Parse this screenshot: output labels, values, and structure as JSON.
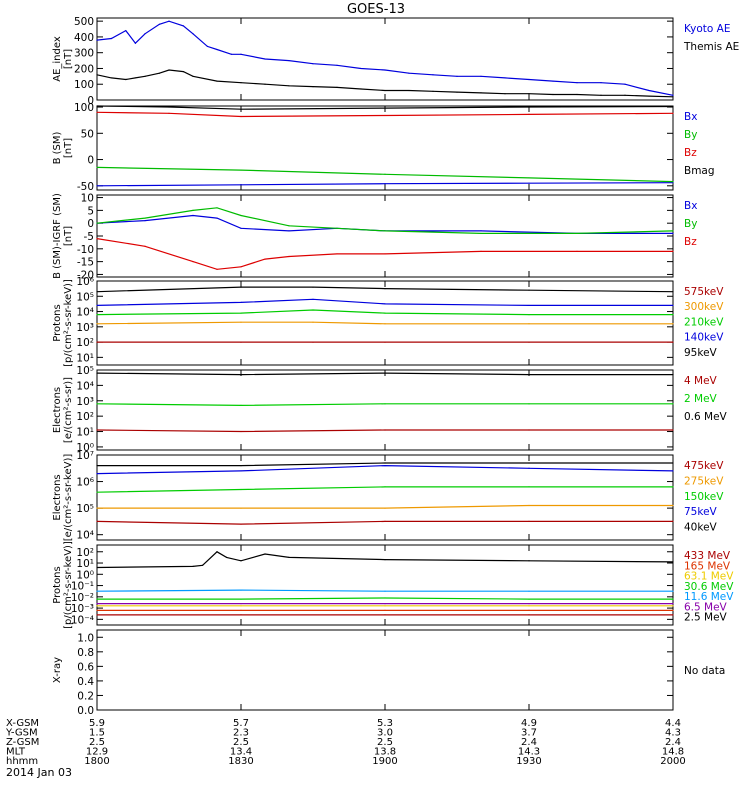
{
  "title": "GOES-13",
  "date_label": "2014 Jan 03",
  "chart_data": [
    {
      "type": "line",
      "ylabel": [
        "AE_index",
        "[nT]"
      ],
      "yticks": [
        "0",
        "100",
        "200",
        "300",
        "400",
        "500"
      ],
      "ylim": [
        0,
        520
      ],
      "log": false,
      "series": [
        {
          "name": "Kyoto AE",
          "color": "#0000dd",
          "x": [
            0,
            3,
            6,
            8,
            10,
            13,
            15,
            18,
            20,
            23,
            25,
            28,
            30,
            35,
            40,
            45,
            50,
            55,
            60,
            65,
            70,
            75,
            80,
            85,
            90,
            95,
            100,
            105,
            110,
            115,
            120
          ],
          "values": [
            380,
            390,
            440,
            360,
            420,
            480,
            500,
            470,
            420,
            340,
            320,
            290,
            290,
            260,
            250,
            230,
            220,
            200,
            190,
            170,
            160,
            150,
            150,
            140,
            130,
            120,
            110,
            110,
            100,
            60,
            30
          ]
        },
        {
          "name": "Themis AE",
          "color": "#000000",
          "x": [
            0,
            3,
            6,
            8,
            10,
            13,
            15,
            18,
            20,
            25,
            30,
            35,
            40,
            45,
            50,
            55,
            60,
            65,
            70,
            75,
            80,
            85,
            90,
            95,
            100,
            105,
            110,
            115,
            120
          ],
          "values": [
            160,
            140,
            130,
            140,
            150,
            170,
            190,
            180,
            150,
            120,
            110,
            100,
            90,
            85,
            80,
            70,
            60,
            60,
            55,
            50,
            45,
            40,
            40,
            35,
            35,
            30,
            30,
            25,
            20
          ]
        }
      ]
    },
    {
      "type": "line",
      "ylabel": [
        "B (SM)",
        "[nT]"
      ],
      "yticks": [
        "-50",
        "0",
        "50",
        "100"
      ],
      "ylim": [
        -58,
        102
      ],
      "log": false,
      "series": [
        {
          "name": "Bx",
          "color": "#0000dd",
          "x": [
            0,
            30,
            60,
            90,
            120
          ],
          "values": [
            -50,
            -48,
            -46,
            -45,
            -44
          ]
        },
        {
          "name": "By",
          "color": "#00bb00",
          "x": [
            0,
            30,
            60,
            90,
            120
          ],
          "values": [
            -15,
            -20,
            -28,
            -35,
            -42
          ]
        },
        {
          "name": "Bz",
          "color": "#dd0000",
          "x": [
            0,
            15,
            30,
            60,
            90,
            120
          ],
          "values": [
            90,
            88,
            82,
            84,
            86,
            88
          ]
        },
        {
          "name": "Bmag",
          "color": "#000000",
          "x": [
            0,
            15,
            30,
            60,
            90,
            120
          ],
          "values": [
            102,
            100,
            96,
            98,
            100,
            101
          ]
        }
      ]
    },
    {
      "type": "line",
      "ylabel": [
        "B (SM)-IGRF (SM)",
        "[nT]"
      ],
      "yticks": [
        "-20",
        "-15",
        "-10",
        "-5",
        "0",
        "5",
        "10"
      ],
      "ylim": [
        -21,
        11
      ],
      "log": false,
      "series": [
        {
          "name": "Bx",
          "color": "#0000dd",
          "x": [
            0,
            10,
            20,
            25,
            30,
            40,
            50,
            60,
            80,
            100,
            120
          ],
          "values": [
            0,
            1,
            3,
            2,
            -2,
            -3,
            -2,
            -3,
            -3,
            -4,
            -4
          ]
        },
        {
          "name": "By",
          "color": "#00bb00",
          "x": [
            0,
            10,
            20,
            25,
            30,
            40,
            50,
            60,
            80,
            100,
            120
          ],
          "values": [
            0,
            2,
            5,
            6,
            3,
            -1,
            -2,
            -3,
            -4,
            -4,
            -3
          ]
        },
        {
          "name": "Bz",
          "color": "#dd0000",
          "x": [
            0,
            10,
            20,
            25,
            30,
            35,
            40,
            50,
            60,
            80,
            100,
            120
          ],
          "values": [
            -6,
            -9,
            -15,
            -18,
            -17,
            -14,
            -13,
            -12,
            -12,
            -11,
            -11,
            -11
          ]
        }
      ]
    },
    {
      "type": "line",
      "ylabel": [
        "Protons",
        "[p/(cm²-s-sr-keV)]"
      ],
      "yticks": [
        "10¹",
        "10²",
        "10³",
        "10⁴",
        "10⁵",
        "10⁶"
      ],
      "ylim": [
        0.5,
        6
      ],
      "log": true,
      "series": [
        {
          "name": "575keV",
          "color": "#aa0000",
          "x": [
            0,
            30,
            45,
            60,
            90,
            120
          ],
          "values": [
            2.0,
            2.0,
            2.0,
            2.0,
            2.0,
            2.0
          ]
        },
        {
          "name": "300keV",
          "color": "#ee9900",
          "x": [
            0,
            30,
            45,
            60,
            90,
            120
          ],
          "values": [
            3.2,
            3.3,
            3.3,
            3.2,
            3.2,
            3.2
          ]
        },
        {
          "name": "210keV",
          "color": "#00cc00",
          "x": [
            0,
            30,
            45,
            60,
            90,
            120
          ],
          "values": [
            3.8,
            3.9,
            4.1,
            3.9,
            3.8,
            3.8
          ]
        },
        {
          "name": "140keV",
          "color": "#0000dd",
          "x": [
            0,
            30,
            45,
            60,
            90,
            120
          ],
          "values": [
            4.4,
            4.6,
            4.8,
            4.5,
            4.4,
            4.4
          ]
        },
        {
          "name": "95keV",
          "color": "#000000",
          "x": [
            0,
            30,
            45,
            60,
            90,
            120
          ],
          "values": [
            5.3,
            5.6,
            5.6,
            5.5,
            5.4,
            5.3
          ]
        }
      ]
    },
    {
      "type": "line",
      "ylabel": [
        "Electrons",
        "[e/(cm²-s-sr)]"
      ],
      "yticks": [
        "10⁰",
        "10¹",
        "10²",
        "10³",
        "10⁴",
        "10⁵"
      ],
      "ylim": [
        -0.2,
        5
      ],
      "log": true,
      "series": [
        {
          "name": "4 MeV",
          "color": "#aa0000",
          "x": [
            0,
            30,
            60,
            90,
            120
          ],
          "values": [
            1.1,
            1.0,
            1.1,
            1.1,
            1.1
          ]
        },
        {
          "name": "2 MeV",
          "color": "#00cc00",
          "x": [
            0,
            30,
            60,
            90,
            120
          ],
          "values": [
            2.8,
            2.7,
            2.8,
            2.8,
            2.8
          ]
        },
        {
          "name": "0.6 MeV",
          "color": "#000000",
          "x": [
            0,
            30,
            60,
            90,
            120
          ],
          "values": [
            4.8,
            4.7,
            4.8,
            4.7,
            4.7
          ]
        }
      ]
    },
    {
      "type": "line",
      "ylabel": [
        "Electrons",
        "[e/(cm²-s-sr-keV)]"
      ],
      "yticks": [
        "10⁴",
        "10⁵",
        "10⁶",
        "10⁷"
      ],
      "ylim": [
        3.8,
        7
      ],
      "log": true,
      "series": [
        {
          "name": "475keV",
          "color": "#aa0000",
          "x": [
            0,
            30,
            60,
            90,
            120
          ],
          "values": [
            4.5,
            4.4,
            4.5,
            4.5,
            4.5
          ]
        },
        {
          "name": "275keV",
          "color": "#ee9900",
          "x": [
            0,
            30,
            60,
            90,
            120
          ],
          "values": [
            5.0,
            5.0,
            5.0,
            5.1,
            5.1
          ]
        },
        {
          "name": "150keV",
          "color": "#00cc00",
          "x": [
            0,
            30,
            60,
            90,
            120
          ],
          "values": [
            5.6,
            5.7,
            5.8,
            5.8,
            5.8
          ]
        },
        {
          "name": "75keV",
          "color": "#0000dd",
          "x": [
            0,
            30,
            60,
            90,
            120
          ],
          "values": [
            6.3,
            6.4,
            6.6,
            6.5,
            6.4
          ]
        },
        {
          "name": "40keV",
          "color": "#000000",
          "x": [
            0,
            30,
            60,
            90,
            120
          ],
          "values": [
            6.6,
            6.6,
            6.7,
            6.7,
            6.7
          ]
        }
      ]
    },
    {
      "type": "line",
      "ylabel": [
        "Protons",
        "[p/(cm²-s-sr-keV)]"
      ],
      "yticks": [
        "10⁻⁴",
        "10⁻³",
        "10⁻²",
        "10⁻¹",
        "10⁰",
        "10¹",
        "10²"
      ],
      "ylim": [
        -4.5,
        2.6
      ],
      "log": true,
      "series": [
        {
          "name": "433 MeV",
          "color": "#aa0000",
          "x": [
            0,
            30,
            60,
            90,
            120
          ],
          "values": [
            -3.6,
            -3.6,
            -3.6,
            -3.6,
            -3.6
          ]
        },
        {
          "name": "165 MeV",
          "color": "#dd3300",
          "x": [
            0,
            30,
            60,
            90,
            120
          ],
          "values": [
            -3.2,
            -3.2,
            -3.2,
            -3.2,
            -3.2
          ]
        },
        {
          "name": "63.1 MeV",
          "color": "#eecc00",
          "x": [
            0,
            30,
            60,
            90,
            120
          ],
          "values": [
            -2.8,
            -2.8,
            -2.8,
            -2.8,
            -2.8
          ]
        },
        {
          "name": "30.6 MeV",
          "color": "#00cc00",
          "x": [
            0,
            30,
            60,
            90,
            120
          ],
          "values": [
            -2.2,
            -2.2,
            -2.1,
            -2.2,
            -2.2
          ]
        },
        {
          "name": "11.6 MeV",
          "color": "#0099ff",
          "x": [
            0,
            30,
            60,
            90,
            120
          ],
          "values": [
            -1.5,
            -1.4,
            -1.5,
            -1.5,
            -1.5
          ]
        },
        {
          "name": "6.5 MeV",
          "color": "#8800aa",
          "x": [
            0,
            30,
            60,
            90,
            120
          ],
          "values": [
            -2.6,
            -2.6,
            -2.6,
            -2.6,
            -2.6
          ]
        },
        {
          "name": "2.5 MeV",
          "color": "#000000",
          "x": [
            0,
            20,
            22,
            25,
            27,
            30,
            35,
            40,
            60,
            90,
            120
          ],
          "values": [
            0.6,
            0.7,
            0.8,
            2.0,
            1.5,
            1.2,
            1.8,
            1.5,
            1.3,
            1.2,
            1.1
          ]
        }
      ]
    },
    {
      "type": "line",
      "ylabel": [
        "X-ray",
        ""
      ],
      "yticks": [
        "0.0",
        "0.2",
        "0.4",
        "0.6",
        "0.8",
        "1.0"
      ],
      "ylim": [
        0,
        1.1
      ],
      "log": false,
      "note": "No data",
      "series": []
    }
  ],
  "xaxis": {
    "ticks": [
      "1800",
      "1830",
      "1900",
      "1930",
      "2000"
    ],
    "rows": [
      {
        "label": "X-GSM",
        "values": [
          "5.9",
          "5.7",
          "5.3",
          "4.9",
          "4.4"
        ]
      },
      {
        "label": "Y-GSM",
        "values": [
          "1.5",
          "2.3",
          "3.0",
          "3.7",
          "4.3"
        ]
      },
      {
        "label": "Z-GSM",
        "values": [
          "2.5",
          "2.5",
          "2.5",
          "2.4",
          "2.4"
        ]
      },
      {
        "label": "MLT",
        "values": [
          "12.9",
          "13.4",
          "13.8",
          "14.3",
          "14.8"
        ]
      },
      {
        "label": "hhmm",
        "values": [
          "1800",
          "1830",
          "1900",
          "1930",
          "2000"
        ]
      }
    ]
  }
}
